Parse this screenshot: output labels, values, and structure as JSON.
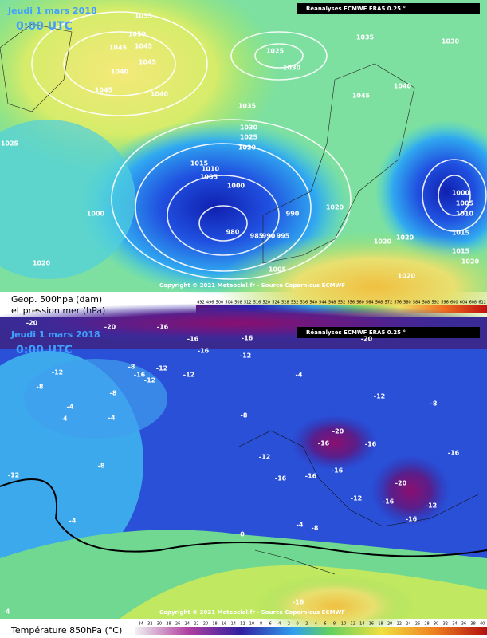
{
  "top_map": {
    "date": "Jeudi 1 mars 2018",
    "time": "0:00 UTC",
    "source": "Réanalyses ECMWF ERA5 0.25 °",
    "copyright": "Copyright © 2021 Meteociel.fr - Source Copernicus ECMWF",
    "legend_title": [
      "Geop. 500hpa (dam)",
      "et pression mer (hPa)"
    ],
    "scale_labels": [
      492,
      496,
      500,
      504,
      508,
      512,
      516,
      520,
      524,
      528,
      532,
      536,
      540,
      544,
      548,
      552,
      556,
      560,
      564,
      568,
      572,
      576,
      580,
      584,
      588,
      592,
      596,
      600,
      604,
      608,
      612
    ],
    "isobar_labels": [
      1055,
      1050,
      1045,
      1045,
      1045,
      1040,
      1045,
      1040,
      1035,
      1025,
      1030,
      1030,
      1040,
      1045,
      1035,
      1030,
      1025,
      1020,
      1015,
      1010,
      1005,
      1000,
      1025,
      1000,
      990,
      980,
      985,
      990,
      995,
      1020,
      1020,
      1020,
      1000,
      1005,
      1010,
      1015,
      1015,
      1020,
      1020,
      1005,
      1020
    ]
  },
  "bottom_map": {
    "date": "Jeudi 1 mars 2018",
    "time": "0:00 UTC",
    "source": "Réanalyses ECMWF ERA5 0.25 °",
    "copyright": "Copyright © 2021 Meteociel.fr - Source Copernicus ECMWF",
    "legend_title": "Température 850hPa (°C)",
    "scale_labels": [
      -34,
      -32,
      -30,
      -28,
      -26,
      -24,
      -22,
      -20,
      -18,
      -16,
      -14,
      -12,
      -10,
      -8,
      -6,
      -4,
      -2,
      0,
      2,
      4,
      6,
      8,
      10,
      12,
      14,
      16,
      18,
      20,
      22,
      24,
      26,
      28,
      30,
      32,
      34,
      36,
      38,
      40
    ],
    "isotherm_labels": [
      -20,
      -20,
      -16,
      -16,
      -16,
      -20,
      -12,
      -16,
      -12,
      -8,
      -12,
      -12,
      -12,
      -16,
      -4,
      -8,
      -8,
      -4,
      -4,
      -4,
      -12,
      -8,
      -8,
      -20,
      -16,
      -12,
      -16,
      -16,
      -8,
      -12,
      -16,
      -16,
      -16,
      -20,
      -12,
      -16,
      -16,
      -12,
      -4,
      -4,
      -8,
      -4,
      -16,
      0
    ]
  }
}
